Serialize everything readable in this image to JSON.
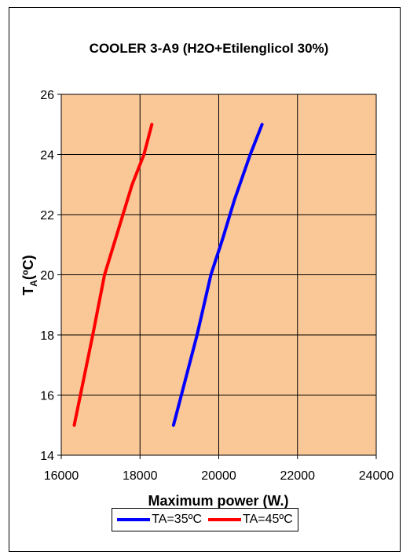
{
  "chart_data": {
    "type": "line",
    "title": "COOLER 3-A9 (H2O+Etilenglicol 30%)",
    "xlabel": "Maximum power (W.)",
    "ylabel_main": "T",
    "ylabel_sub": "A",
    "ylabel_unit": "(ºC)",
    "xlim": [
      16000,
      24000
    ],
    "ylim": [
      14,
      26
    ],
    "xticks": [
      "16000",
      "18000",
      "20000",
      "22000",
      "24000"
    ],
    "yticks": [
      "14",
      "16",
      "18",
      "20",
      "22",
      "24",
      "26"
    ],
    "grid": true,
    "plot_background": "#FAC796",
    "legend_position": "bottom",
    "series": [
      {
        "name": "TA=35ºC",
        "color": "#0000FF",
        "points": [
          [
            18850,
            15
          ],
          [
            19450,
            18
          ],
          [
            19800,
            20
          ],
          [
            20100,
            21.2
          ],
          [
            20400,
            22.5
          ],
          [
            20800,
            24
          ],
          [
            21100,
            25
          ]
        ]
      },
      {
        "name": "TA=45ºC",
        "color": "#FF0000",
        "points": [
          [
            16330,
            15
          ],
          [
            16800,
            18
          ],
          [
            17100,
            20
          ],
          [
            17450,
            21.5
          ],
          [
            17800,
            23
          ],
          [
            18100,
            24
          ],
          [
            18300,
            25
          ]
        ]
      }
    ]
  }
}
